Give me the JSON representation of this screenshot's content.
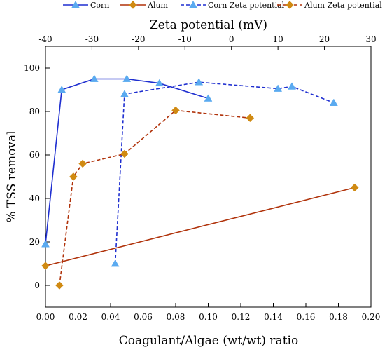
{
  "chart_data": {
    "type": "line",
    "xlabel": "Coagulant/Algae (wt/wt) ratio",
    "ylabel": "% TSS removal",
    "x2label": "Zeta potential (mV)",
    "xlim": [
      0,
      0.2
    ],
    "ylim": [
      -10,
      110
    ],
    "x2lim": [
      -40,
      30
    ],
    "xticks": [
      "0.00",
      "0.02",
      "0.04",
      "0.06",
      "0.08",
      "0.10",
      "0.12",
      "0.14",
      "0.16",
      "0.18",
      "0.20"
    ],
    "yticks": [
      "0",
      "20",
      "40",
      "60",
      "80",
      "100"
    ],
    "x2ticks": [
      "-40",
      "-30",
      "-20",
      "-10",
      "0",
      "10",
      "20",
      "30"
    ],
    "legend_position": "top",
    "grid": false,
    "series": [
      {
        "name": "Corn",
        "axis": "bottom",
        "color": "#1f2fd0",
        "line": "solid",
        "marker": "triangle",
        "marker_color": "#5aaaf0",
        "x": [
          0.0,
          0.01,
          0.03,
          0.05,
          0.07,
          0.1
        ],
        "y": [
          19,
          90,
          95,
          95,
          93,
          86
        ]
      },
      {
        "name": "Alum",
        "axis": "bottom",
        "color": "#b0320a",
        "line": "solid",
        "marker": "diamond",
        "marker_color": "#d08a12",
        "x": [
          0.0,
          0.19
        ],
        "y": [
          9,
          45
        ]
      },
      {
        "name": "Corn Zeta potential",
        "axis": "top",
        "color": "#1f2fd0",
        "line": "dashed",
        "marker": "triangle",
        "marker_color": "#5aaaf0",
        "x": [
          -25,
          -23,
          -7,
          10,
          13,
          22
        ],
        "y": [
          10,
          88,
          93.5,
          90.5,
          91.5,
          84
        ]
      },
      {
        "name": "Alum Zeta potential",
        "axis": "top",
        "color": "#b0320a",
        "line": "dashed",
        "marker": "diamond",
        "marker_color": "#d08a12",
        "x": [
          -37,
          -34,
          -32,
          -23,
          -12,
          4
        ],
        "y": [
          0,
          50,
          56,
          60.5,
          80.5,
          77
        ]
      }
    ]
  }
}
